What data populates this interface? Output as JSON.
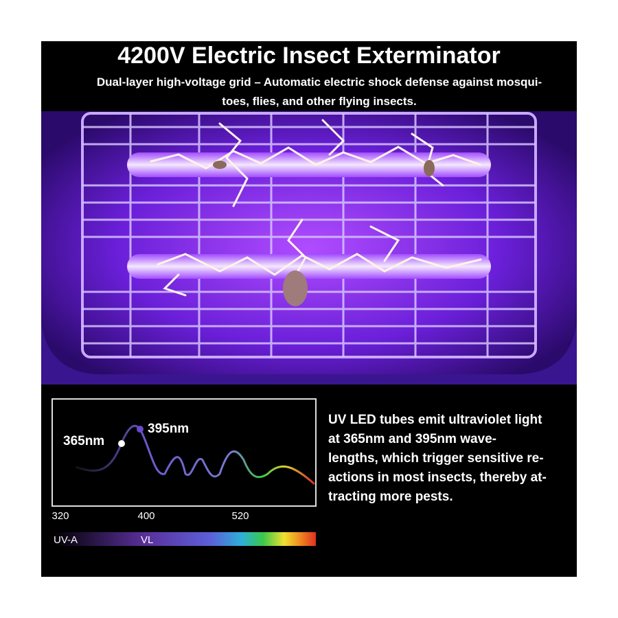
{
  "header": {
    "title": "4200V Electric Insect Exterminator",
    "subtitle_lines": [
      "Dual-layer high-voltage grid – Automatic electric shock defense against mosqui-",
      "toes, flies, and other flying insects."
    ]
  },
  "spectrum": {
    "peak_labels": [
      "365nm",
      "395nm"
    ],
    "axis_labels": [
      "320",
      "400",
      "520"
    ],
    "band_labels": [
      "UV-A",
      "VL"
    ]
  },
  "description_lines": [
    "UV LED tubes emit ultraviolet light",
    "at 365nm and 395nm wave-",
    "lengths, which trigger sensitive re-",
    "actions in most insects, thereby at-",
    "tracting more pests."
  ]
}
